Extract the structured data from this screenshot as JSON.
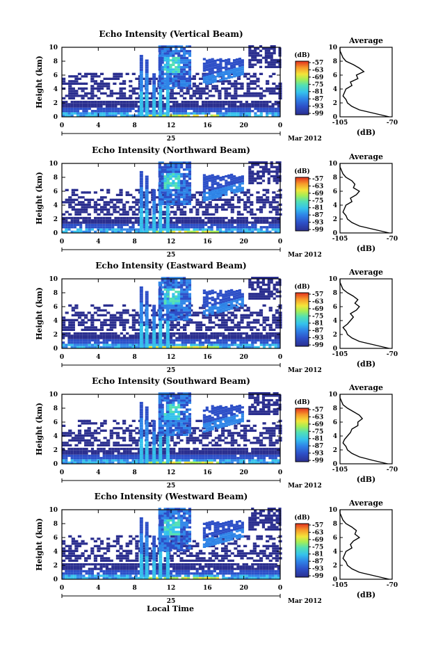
{
  "figure": {
    "xlabel_common": "Local Time",
    "date_day": "25",
    "date_month_year": "Mar 2012",
    "colorbar_unit": "(dB)",
    "colorbar_ticks": [
      "-57",
      "-63",
      "-69",
      "-75",
      "-81",
      "-87",
      "-93",
      "-99"
    ],
    "colorbar_colors": [
      "#2b2f8f",
      "#2d4fc7",
      "#2f86e8",
      "#35c2ec",
      "#52e0b4",
      "#a6ee55",
      "#f4e43a",
      "#f79a2a",
      "#e2301e"
    ],
    "profile_title": "Average",
    "profile_xlabel": "(dB)",
    "profile_xticks": [
      "-105",
      "-70"
    ],
    "x_ticks": [
      "0",
      "4",
      "8",
      "12",
      "16",
      "20",
      "0"
    ],
    "y_ticks": [
      "0",
      "2",
      "4",
      "6",
      "8",
      "10"
    ],
    "y_label": "Height (km)"
  },
  "chart_data": [
    {
      "type": "heatmap",
      "title": "Echo Intensity (Vertical Beam)",
      "xlabel": "",
      "ylabel": "Height (km)",
      "xlim": [
        0,
        24
      ],
      "ylim": [
        0,
        10
      ],
      "color_range_db": [
        -99,
        -57
      ],
      "profile": {
        "title": "Average",
        "xlim": [
          -105,
          -70
        ],
        "heights_km": [
          0,
          0.5,
          1,
          1.5,
          2,
          2.5,
          3,
          3.5,
          4,
          4.5,
          5,
          5.5,
          6,
          6.5,
          7,
          7.5,
          8,
          8.5,
          9,
          9.5,
          10
        ],
        "values_db": [
          -72,
          -82,
          -92,
          -97,
          -100,
          -101,
          -103,
          -102,
          -101,
          -97,
          -98,
          -93,
          -94,
          -89,
          -92,
          -96,
          -101,
          -103,
          -104,
          -105,
          -105
        ]
      }
    },
    {
      "type": "heatmap",
      "title": "Echo Intensity (Northward Beam)",
      "xlabel": "",
      "ylabel": "Height (km)",
      "xlim": [
        0,
        24
      ],
      "ylim": [
        0,
        10
      ],
      "color_range_db": [
        -99,
        -57
      ],
      "profile": {
        "title": "Average",
        "xlim": [
          -105,
          -70
        ],
        "heights_km": [
          0,
          0.5,
          1,
          1.5,
          2,
          2.5,
          3,
          3.5,
          4,
          4.5,
          5,
          5.5,
          6,
          6.5,
          7,
          7.5,
          8,
          8.5,
          9,
          9.5,
          10
        ],
        "values_db": [
          -72,
          -82,
          -92,
          -97,
          -100,
          -101,
          -103,
          -102,
          -101,
          -97,
          -98,
          -94,
          -92,
          -96,
          -95,
          -97,
          -101,
          -103,
          -104,
          -105,
          -105
        ]
      }
    },
    {
      "type": "heatmap",
      "title": "Echo Intensity (Eastward Beam)",
      "xlabel": "",
      "ylabel": "Height (km)",
      "xlim": [
        0,
        24
      ],
      "ylim": [
        0,
        10
      ],
      "color_range_db": [
        -99,
        -57
      ],
      "profile": {
        "title": "Average",
        "xlim": [
          -105,
          -70
        ],
        "heights_km": [
          0,
          0.5,
          1,
          1.5,
          2,
          2.5,
          3,
          3.5,
          4,
          4.5,
          5,
          5.5,
          6,
          6.5,
          7,
          7.5,
          8,
          8.5,
          9,
          9.5,
          10
        ],
        "values_db": [
          -72,
          -82,
          -92,
          -97,
          -100,
          -101,
          -103,
          -100,
          -98,
          -96,
          -98,
          -94,
          -92,
          -95,
          -93,
          -96,
          -100,
          -103,
          -104,
          -105,
          -105
        ]
      }
    },
    {
      "type": "heatmap",
      "title": "Echo Intensity (Southward Beam)",
      "xlabel": "",
      "ylabel": "Height (km)",
      "xlim": [
        0,
        24
      ],
      "ylim": [
        0,
        10
      ],
      "color_range_db": [
        -99,
        -57
      ],
      "profile": {
        "title": "Average",
        "xlim": [
          -105,
          -70
        ],
        "heights_km": [
          0,
          0.5,
          1,
          1.5,
          2,
          2.5,
          3,
          3.5,
          4,
          4.5,
          5,
          5.5,
          6,
          6.5,
          7,
          7.5,
          8,
          8.5,
          9,
          9.5,
          10
        ],
        "values_db": [
          -73,
          -83,
          -92,
          -97,
          -100,
          -101,
          -103,
          -102,
          -100,
          -98,
          -97,
          -93,
          -93,
          -90,
          -92,
          -96,
          -100,
          -103,
          -104,
          -105,
          -105
        ]
      }
    },
    {
      "type": "heatmap",
      "title": "Echo Intensity (Westward Beam)",
      "xlabel": "",
      "ylabel": "Height (km)",
      "xlim": [
        0,
        24
      ],
      "ylim": [
        0,
        10
      ],
      "color_range_db": [
        -99,
        -57
      ],
      "profile": {
        "title": "Average",
        "xlim": [
          -105,
          -70
        ],
        "heights_km": [
          0,
          0.5,
          1,
          1.5,
          2,
          2.5,
          3,
          3.5,
          4,
          4.5,
          5,
          5.5,
          6,
          6.5,
          7,
          7.5,
          8,
          8.5,
          9,
          9.5,
          10
        ],
        "values_db": [
          -72,
          -82,
          -92,
          -97,
          -100,
          -101,
          -103,
          -102,
          -101,
          -97,
          -98,
          -96,
          -92,
          -95,
          -94,
          -97,
          -101,
          -103,
          -104,
          -105,
          -105
        ]
      }
    }
  ]
}
